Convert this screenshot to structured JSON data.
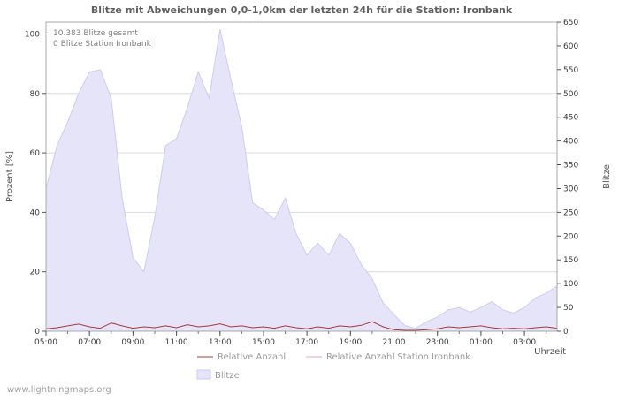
{
  "watermark": "www.lightningmaps.org",
  "chart_data": {
    "type": "area",
    "title": "Blitze mit Abweichungen 0,0-1,0km der letzten 24h für die Station: Ironbank",
    "xlabel": "Uhrzeit",
    "ylabel_left": "Prozent  [%]",
    "ylabel_right": "Blitze",
    "annotations": [
      "10.383 Blitze gesamt",
      "0 Blitze Station Ironbank"
    ],
    "left_ticks": [
      0,
      20,
      40,
      60,
      80,
      100
    ],
    "left_max": 104,
    "right_ticks": [
      0,
      50,
      100,
      150,
      200,
      250,
      300,
      350,
      400,
      450,
      500,
      550,
      600,
      650
    ],
    "right_max": 650,
    "x_tick_labels": [
      "05:00",
      "07:00",
      "09:00",
      "11:00",
      "13:00",
      "15:00",
      "17:00",
      "19:00",
      "21:00",
      "23:00",
      "01:00",
      "03:00"
    ],
    "x_tick_indices": [
      0,
      4,
      8,
      12,
      16,
      20,
      24,
      28,
      32,
      36,
      40,
      44
    ],
    "x": [
      "05:00",
      "05:30",
      "06:00",
      "06:30",
      "07:00",
      "07:30",
      "08:00",
      "08:30",
      "09:00",
      "09:30",
      "10:00",
      "10:30",
      "11:00",
      "11:30",
      "12:00",
      "12:30",
      "13:00",
      "13:30",
      "14:00",
      "14:30",
      "15:00",
      "15:30",
      "16:00",
      "16:30",
      "17:00",
      "17:30",
      "18:00",
      "18:30",
      "19:00",
      "19:30",
      "20:00",
      "20:30",
      "21:00",
      "21:30",
      "22:00",
      "22:30",
      "23:00",
      "23:30",
      "00:00",
      "00:30",
      "01:00",
      "01:30",
      "02:00",
      "02:30",
      "03:00",
      "03:30",
      "04:00",
      "04:30"
    ],
    "series": [
      {
        "name": "Blitze",
        "type": "area",
        "axis": "right",
        "color": "#e6e4f8",
        "edge_color": "#cfcbee",
        "values": [
          300,
          390,
          440,
          500,
          545,
          550,
          490,
          280,
          155,
          125,
          240,
          390,
          405,
          470,
          545,
          490,
          635,
          530,
          430,
          270,
          255,
          235,
          280,
          205,
          160,
          185,
          160,
          205,
          185,
          140,
          110,
          60,
          35,
          12,
          6,
          20,
          30,
          45,
          50,
          40,
          50,
          62,
          45,
          38,
          50,
          70,
          80,
          95
        ]
      },
      {
        "name": "Relative Anzahl",
        "type": "line",
        "axis": "left",
        "color": "#aa3939",
        "values": [
          0.8,
          1.2,
          1.8,
          2.4,
          1.5,
          1.0,
          2.8,
          1.8,
          1.0,
          1.5,
          1.2,
          1.8,
          1.2,
          2.2,
          1.5,
          1.8,
          2.5,
          1.5,
          1.8,
          1.2,
          1.5,
          1.0,
          1.8,
          1.2,
          0.8,
          1.5,
          1.0,
          1.8,
          1.5,
          2.0,
          3.2,
          1.5,
          0.5,
          0.3,
          0.3,
          0.5,
          0.8,
          1.5,
          1.2,
          1.5,
          1.8,
          1.2,
          0.8,
          1.0,
          0.8,
          1.2,
          1.5,
          1.0
        ]
      },
      {
        "name": "Relative Anzahl Station Ironbank",
        "type": "line",
        "axis": "left",
        "color": "#f2a0b2",
        "values": [
          0,
          0,
          0,
          0,
          0,
          0,
          0,
          0,
          0,
          0,
          0,
          0,
          0,
          0,
          0,
          0,
          0,
          0,
          0,
          0,
          0,
          0,
          0,
          0,
          0,
          0,
          0,
          0,
          0,
          0,
          0,
          0,
          0,
          0,
          0,
          0,
          0,
          0,
          0,
          0,
          0,
          0,
          0,
          0,
          0,
          0,
          0,
          0
        ]
      }
    ]
  }
}
